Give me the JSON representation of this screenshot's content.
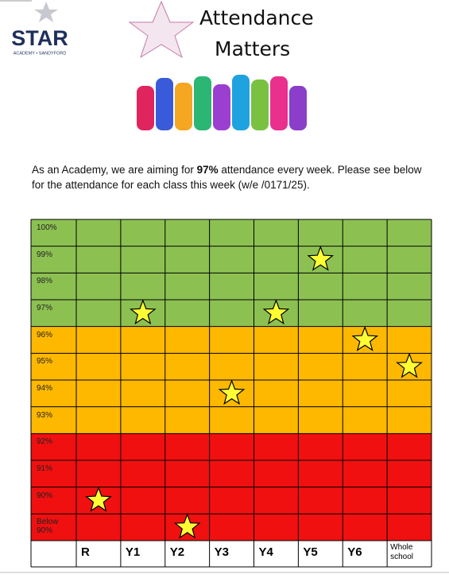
{
  "header": {
    "logo_text": "STAR",
    "logo_subtext": "ACADEMY • SANDYFORD",
    "title_line1": "Attendance",
    "title_line2": "Matters"
  },
  "paragraph": {
    "before": "As an Academy, we are aiming for ",
    "bold": "97%",
    "after": " attendance every week. Please see below for the attendance for each class this week (w/e /0171/25)."
  },
  "chart_data": {
    "type": "star-grid",
    "categories": [
      "R",
      "Y1",
      "Y2",
      "Y3",
      "Y4",
      "Y5",
      "Y6",
      "Whole school"
    ],
    "values": [
      90,
      97,
      89,
      94,
      97,
      99,
      96,
      95
    ],
    "ylim": [
      88.5,
      100.5
    ],
    "yticks": [
      {
        "value": 100,
        "label": "100%"
      },
      {
        "value": 99,
        "label": "99%"
      },
      {
        "value": 98,
        "label": "98%"
      },
      {
        "value": 97,
        "label": "97%"
      },
      {
        "value": 96,
        "label": "96%"
      },
      {
        "value": 95,
        "label": "95%"
      },
      {
        "value": 94,
        "label": "94%"
      },
      {
        "value": 93,
        "label": "93%"
      },
      {
        "value": 92,
        "label": "92%"
      },
      {
        "value": 91,
        "label": "91%"
      },
      {
        "value": 90,
        "label": "90%"
      },
      {
        "value": 89,
        "label": "Below 90%"
      }
    ],
    "zones": [
      {
        "min": 97,
        "max": 100,
        "color": "#8cc152"
      },
      {
        "min": 93,
        "max": 96,
        "color": "#ffb800"
      },
      {
        "min": 89,
        "max": 92,
        "color": "#f01010"
      }
    ],
    "color": "#ffff33"
  }
}
